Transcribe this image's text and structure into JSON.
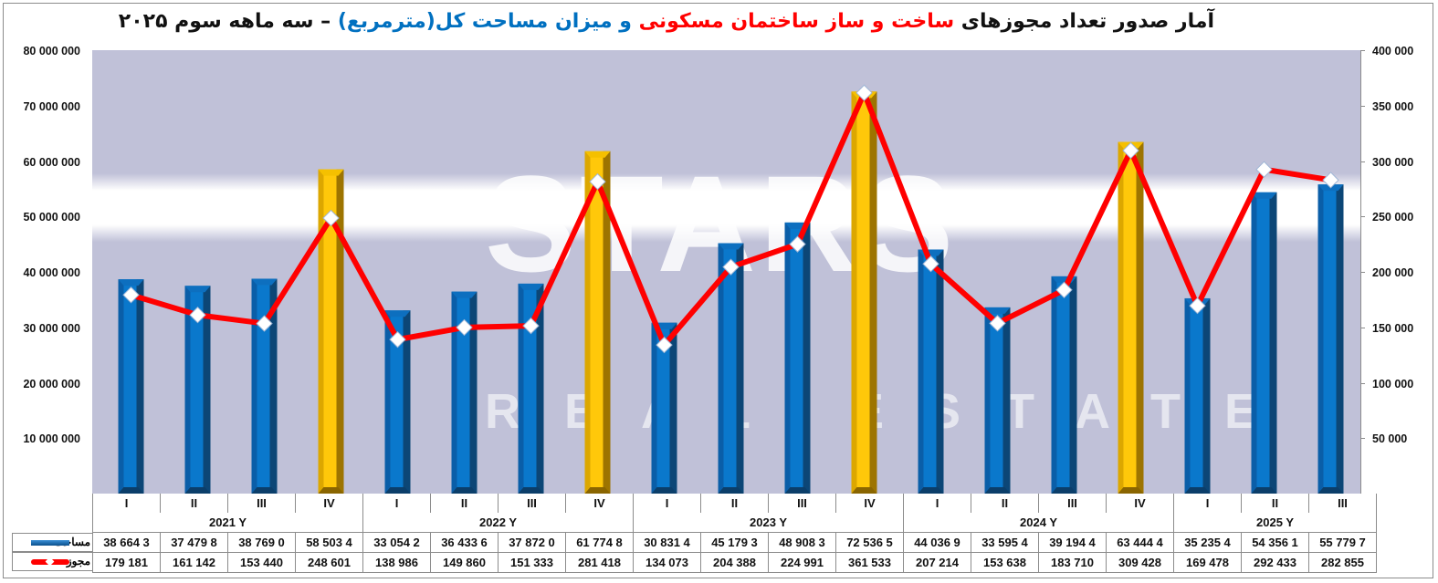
{
  "title": {
    "part1": "آمار صدور  تعداد مجوزهای ",
    "part2": "ساخت و ساز ساختمان مسکونی",
    "part3": " و میزان مساحت کل(مترمربع)",
    "part4": " – سه ماهه سوم ۲۰۲۵"
  },
  "watermark": {
    "main": "STARS",
    "sub": "REAL ESTATE"
  },
  "colors": {
    "bar_blue": "#0070c0",
    "bar_gold": "#ffc000",
    "line_red": "#ff0000",
    "marker": "#ffffff",
    "plot_bg": "#c0c1d8"
  },
  "legend": {
    "area_label": "مساحت",
    "permits_label": "مجوز"
  },
  "y_left_ticks": [
    "80 000 000",
    "70 000 000",
    "60 000 000",
    "50 000 000",
    "40 000 000",
    "30 000 000",
    "20 000 000",
    "10 000 000"
  ],
  "y_right_ticks": [
    "400 000",
    "350 000",
    "300 000",
    "250 000",
    "200 000",
    "150 000",
    "100 000",
    "50 000"
  ],
  "table": {
    "quarters": [
      "I",
      "II",
      "III",
      "IV",
      "I",
      "II",
      "III",
      "IV",
      "I",
      "II",
      "III",
      "IV",
      "I",
      "II",
      "III",
      "IV",
      "I",
      "II",
      "III"
    ],
    "years": [
      {
        "label": "2021  Y",
        "span": 4
      },
      {
        "label": "2022  Y",
        "span": 4
      },
      {
        "label": "2023  Y",
        "span": 4
      },
      {
        "label": "2024  Y",
        "span": 4
      },
      {
        "label": "2025  Y",
        "span": 3
      }
    ],
    "area_row": [
      "38 664 3",
      "37 479 8",
      "38 769 0",
      "58 503 4",
      "33 054 2",
      "36 433 6",
      "37 872 0",
      "61 774 8",
      "30 831 4",
      "45 179 3",
      "48 908 3",
      "72 536 5",
      "44 036 9",
      "33 595 4",
      "39 194 4",
      "63 444 4",
      "35 235 4",
      "54 356 1",
      "55 779 7"
    ],
    "permits_row": [
      "179 181",
      "161 142",
      "153 440",
      "248 601",
      "138 986",
      "149 860",
      "151 333",
      "281 418",
      "134 073",
      "204 388",
      "224 991",
      "361 533",
      "207 214",
      "153 638",
      "183 710",
      "309 428",
      "169 478",
      "292 433",
      "282 855"
    ]
  },
  "chart_data": {
    "type": "bar+line",
    "title": "آمار صدور تعداد مجوزهای ساخت و ساز ساختمان مسکونی و میزان مساحت کل(مترمربع) – سه ماهه سوم ۲۰۲۵",
    "categories": [
      "2021 I",
      "2021 II",
      "2021 III",
      "2021 IV",
      "2022 I",
      "2022 II",
      "2022 III",
      "2022 IV",
      "2023 I",
      "2023 II",
      "2023 III",
      "2023 IV",
      "2024 I",
      "2024 II",
      "2024 III",
      "2024 IV",
      "2025 I",
      "2025 II",
      "2025 III"
    ],
    "series": [
      {
        "name": "مساحت",
        "type": "bar",
        "axis": "left",
        "values": [
          38664300,
          37479800,
          38769000,
          58503400,
          33054200,
          36433600,
          37872000,
          61774800,
          30831400,
          45179300,
          48908300,
          72536500,
          44036900,
          33595400,
          39194400,
          63444400,
          35235400,
          54356100,
          55779700
        ],
        "highlight_q4_color": "#ffc000"
      },
      {
        "name": "مجوز",
        "type": "line",
        "axis": "right",
        "values": [
          179181,
          161142,
          153440,
          248601,
          138986,
          149860,
          151333,
          281418,
          134073,
          204388,
          224991,
          361533,
          207214,
          153638,
          183710,
          309428,
          169478,
          292433,
          282855
        ]
      }
    ],
    "ylim_left": [
      0,
      80000000
    ],
    "ylim_right": [
      0,
      400000
    ],
    "xlabel": "",
    "ylabel": "",
    "grid": false,
    "legend_position": "data-table"
  }
}
